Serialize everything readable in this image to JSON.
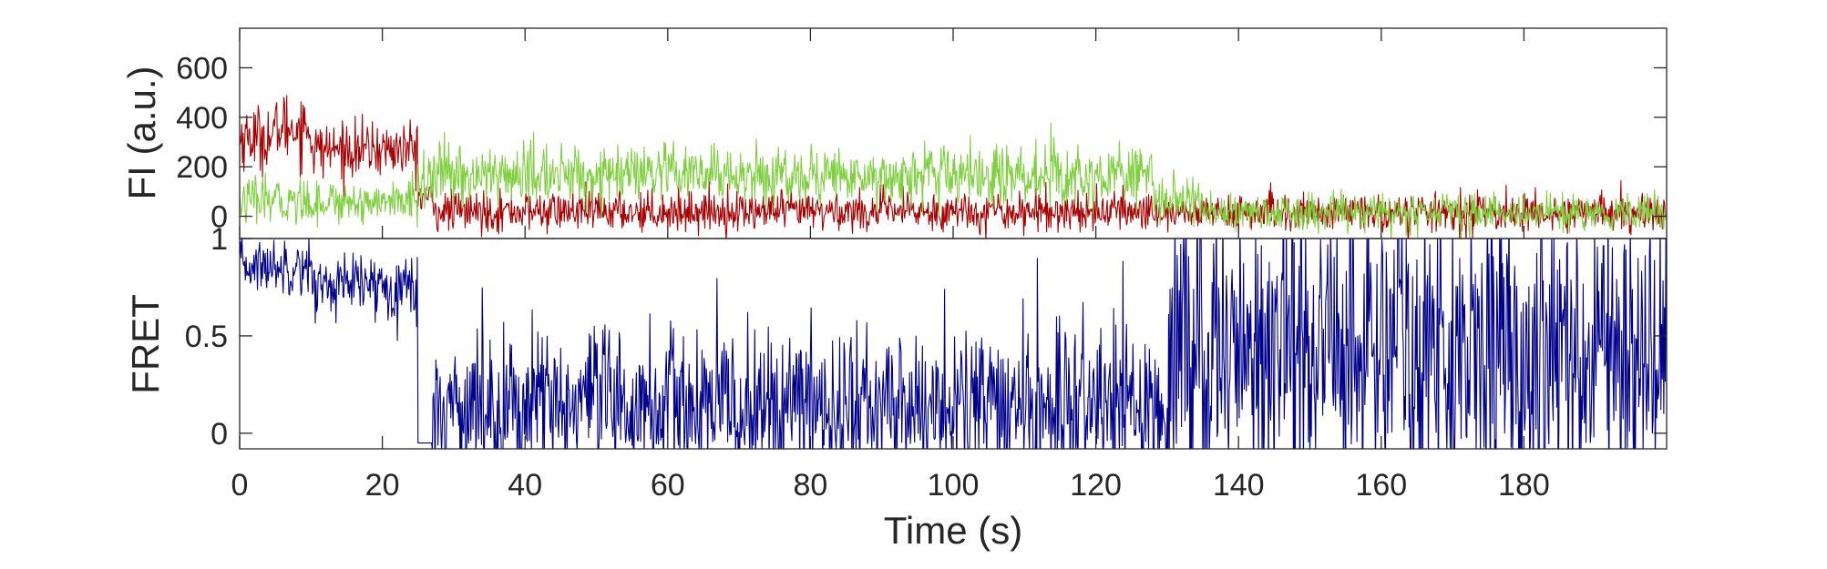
{
  "chart_data": [
    {
      "type": "line",
      "panel": "top",
      "title": "",
      "xlabel": "",
      "ylabel": "FI (a.u.)",
      "xlim": [
        0,
        200
      ],
      "ylim": [
        -90,
        760
      ],
      "yticks": [
        0,
        200,
        400,
        600
      ],
      "ytick_labels": [
        "0",
        "200",
        "400",
        "600"
      ],
      "grid": false,
      "legend": "none",
      "sample_interval_s": 0.1,
      "series": [
        {
          "color": "#a80000",
          "segments": [
            {
              "t0": 0,
              "t1": 5,
              "mean": 320,
              "noise": 65
            },
            {
              "t0": 5,
              "t1": 10,
              "mean": 360,
              "noise": 70
            },
            {
              "t0": 10,
              "t1": 25,
              "mean": 270,
              "noise": 55
            },
            {
              "t0": 25,
              "t1": 27,
              "mean": 80,
              "noise": 40
            },
            {
              "t0": 27,
              "t1": 130,
              "mean": 20,
              "noise": 40
            },
            {
              "t0": 130,
              "t1": 200,
              "mean": 15,
              "noise": 38
            }
          ]
        },
        {
          "color": "#7fd03f",
          "segments": [
            {
              "t0": 0,
              "t1": 25,
              "mean": 60,
              "noise": 45
            },
            {
              "t0": 25,
              "t1": 27,
              "mean": 150,
              "noise": 55
            },
            {
              "t0": 27,
              "t1": 128,
              "mean": 165,
              "noise": 60
            },
            {
              "t0": 128,
              "t1": 135,
              "mean": 60,
              "noise": 45
            },
            {
              "t0": 135,
              "t1": 200,
              "mean": 15,
              "noise": 38
            }
          ]
        }
      ]
    },
    {
      "type": "line",
      "panel": "bottom",
      "title": "",
      "xlabel": "Time (s)",
      "ylabel": "FRET",
      "xlim": [
        0,
        200
      ],
      "ylim": [
        -0.08,
        1.0
      ],
      "yticks": [
        0,
        0.5,
        1
      ],
      "ytick_labels": [
        "0",
        "0.5",
        "1"
      ],
      "xticks": [
        0,
        20,
        40,
        60,
        80,
        100,
        120,
        140,
        160,
        180
      ],
      "xtick_labels": [
        "0",
        "20",
        "40",
        "60",
        "80",
        "100",
        "120",
        "140",
        "160",
        "180"
      ],
      "grid": false,
      "legend": "none",
      "sample_interval_s": 0.1,
      "series": [
        {
          "color": "#00008b",
          "segments": [
            {
              "t0": 0,
              "t1": 10,
              "mean": 0.86,
              "noise": 0.07
            },
            {
              "t0": 10,
              "t1": 25,
              "mean": 0.76,
              "noise": 0.08
            },
            {
              "t0": 25,
              "t1": 27,
              "mean": -0.05,
              "noise": 0.0
            },
            {
              "t0": 27,
              "t1": 130,
              "mean": 0.14,
              "noise": 0.2
            },
            {
              "t0": 130,
              "t1": 200,
              "mean": 0.45,
              "noise": 0.38
            }
          ]
        }
      ]
    }
  ]
}
